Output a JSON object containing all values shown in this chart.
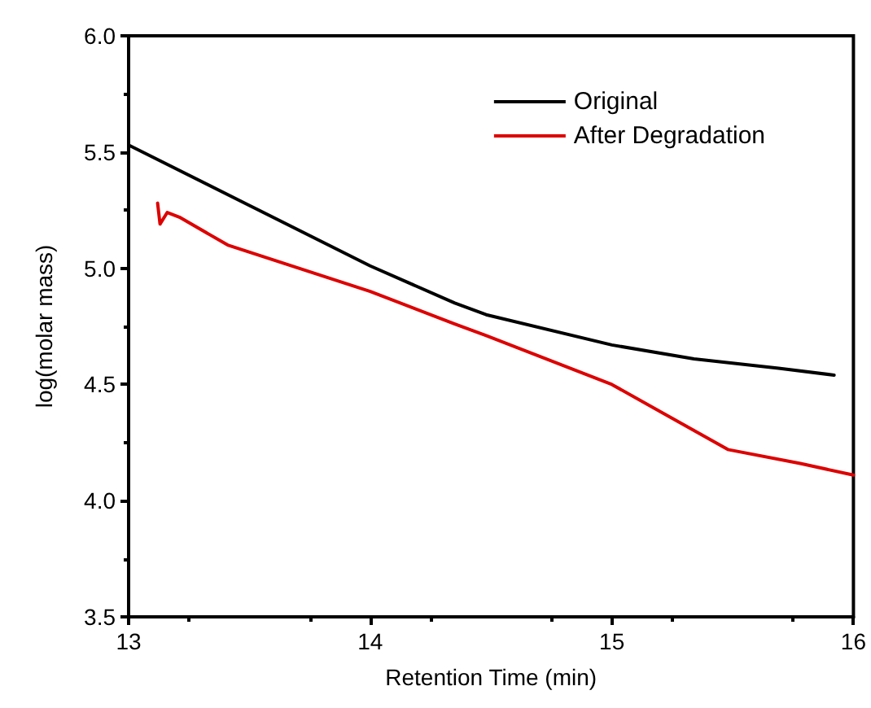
{
  "chart_data": {
    "type": "line",
    "xlabel": "Retention Time (min)",
    "ylabel": "log(molar mass)",
    "xlim": [
      13,
      16
    ],
    "xticks": [
      13,
      14,
      15,
      16
    ],
    "ylim": [
      3.5,
      6.0
    ],
    "yticks": [
      {
        "value": 3.5,
        "label": "3.5"
      },
      {
        "value": 4,
        "label": "4.0"
      },
      {
        "value": 4.5,
        "label": "4.5"
      },
      {
        "value": 5,
        "label": "5.0"
      },
      {
        "value": 5.5,
        "label": "5.5"
      },
      {
        "value": 6,
        "label": "6.0"
      }
    ],
    "grid": false,
    "legend": "top right",
    "marker": "none",
    "line_style": "solid",
    "series": [
      {
        "name": "Original",
        "color": "#000000",
        "x": [
          13,
          13.5,
          14,
          14.35,
          14.48,
          15,
          15.34,
          15.69,
          15.92
        ],
        "values": [
          5.53,
          5.27,
          5.01,
          4.85,
          4.8,
          4.67,
          4.61,
          4.57,
          4.54
        ]
      },
      {
        "name": "After Degradation",
        "color": "#dd0000",
        "x": [
          13.12,
          13.13,
          13.16,
          13.21,
          13.41,
          14,
          14.35,
          14.48,
          15,
          15.48,
          15.78,
          16
        ],
        "values": [
          5.28,
          5.19,
          5.24,
          5.22,
          5.1,
          4.9,
          4.76,
          4.71,
          4.5,
          4.22,
          4.16,
          4.11
        ]
      }
    ]
  }
}
